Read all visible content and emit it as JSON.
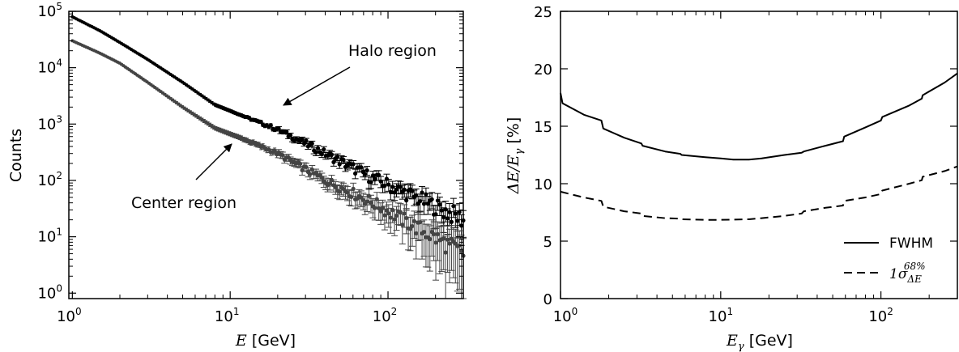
{
  "chart_data": [
    {
      "type": "scatter",
      "ylabel": "Counts",
      "xlabel": {
        "italic": "E",
        "rest": " [GeV]"
      },
      "x_scale": "log",
      "y_scale": "log",
      "xlim": [
        0.95,
        300
      ],
      "ylim": [
        0.8,
        100000
      ],
      "x_ticks": [
        {
          "value": 1,
          "base": "10",
          "exp": "0"
        },
        {
          "value": 10,
          "base": "10",
          "exp": "1"
        },
        {
          "value": 100,
          "base": "10",
          "exp": "2"
        }
      ],
      "y_ticks": [
        {
          "value": 1,
          "base": "10",
          "exp": "0"
        },
        {
          "value": 10,
          "base": "10",
          "exp": "1"
        },
        {
          "value": 100,
          "base": "10",
          "exp": "2"
        },
        {
          "value": 1000,
          "base": "10",
          "exp": "3"
        },
        {
          "value": 10000,
          "base": "10",
          "exp": "4"
        },
        {
          "value": 100000,
          "base": "10",
          "exp": "5"
        }
      ],
      "series": [
        {
          "name": "Halo region",
          "color": "#000000",
          "x": [
            1,
            1.5,
            2,
            3,
            5,
            8,
            12,
            20,
            40,
            80,
            150,
            300
          ],
          "y": [
            80000,
            45000,
            28000,
            14000,
            5500,
            2200,
            1400,
            800,
            300,
            110,
            50,
            20
          ]
        },
        {
          "name": "Center region",
          "color": "#444444",
          "x": [
            1,
            1.5,
            2,
            3,
            5,
            8,
            12,
            20,
            40,
            80,
            150,
            300
          ],
          "y": [
            30000,
            18000,
            12000,
            5500,
            2000,
            850,
            550,
            300,
            100,
            40,
            15,
            5
          ]
        }
      ],
      "annotations": [
        {
          "text": "Halo region",
          "target": [
            20,
            1700
          ]
        },
        {
          "text": "Center region",
          "target": [
            10,
            560
          ]
        }
      ]
    },
    {
      "type": "line",
      "ylabel": {
        "math": "ΔE/E",
        "sub": "γ",
        "rest": " [%]"
      },
      "xlabel": {
        "italic": "E",
        "sub": "γ",
        "rest": " [GeV]"
      },
      "x_scale": "log",
      "xlim": [
        1,
        300
      ],
      "ylim": [
        0,
        25
      ],
      "x_ticks": [
        {
          "value": 1,
          "base": "10",
          "exp": "0"
        },
        {
          "value": 10,
          "base": "10",
          "exp": "1"
        },
        {
          "value": 100,
          "base": "10",
          "exp": "2"
        }
      ],
      "y_ticks": [
        "0",
        "5",
        "10",
        "15",
        "20",
        "25"
      ],
      "series": [
        {
          "name": "FWHM",
          "style": "solid",
          "x": [
            1,
            1.03,
            1.4,
            1.8,
            1.85,
            2.5,
            3.2,
            3.25,
            4.5,
            5.6,
            5.7,
            8,
            10,
            12,
            15,
            18,
            25,
            32,
            33,
            45,
            58,
            59,
            80,
            100,
            102,
            150,
            180,
            182,
            250,
            300
          ],
          "y": [
            17.9,
            17.0,
            16.0,
            15.5,
            14.8,
            14.0,
            13.5,
            13.3,
            12.8,
            12.6,
            12.5,
            12.3,
            12.2,
            12.1,
            12.1,
            12.2,
            12.5,
            12.7,
            12.8,
            13.3,
            13.7,
            14.1,
            14.9,
            15.5,
            15.8,
            16.8,
            17.4,
            17.7,
            18.8,
            19.6
          ]
        },
        {
          "name": {
            "pre": "1σ",
            "sub": "ΔE",
            "sup": "68%"
          },
          "style": "dashed",
          "x": [
            1,
            1.4,
            1.8,
            1.85,
            2.5,
            3.2,
            3.25,
            4.5,
            5.6,
            5.7,
            8,
            10,
            15,
            18,
            25,
            32,
            33,
            45,
            58,
            59,
            80,
            100,
            102,
            150,
            180,
            182,
            250,
            300
          ],
          "y": [
            9.3,
            8.8,
            8.5,
            8.0,
            7.6,
            7.4,
            7.2,
            7.0,
            6.95,
            6.9,
            6.85,
            6.85,
            6.9,
            7.0,
            7.2,
            7.4,
            7.6,
            7.9,
            8.1,
            8.5,
            8.8,
            9.1,
            9.4,
            10.0,
            10.3,
            10.6,
            11.1,
            11.5
          ]
        }
      ],
      "legend_position": "lower-right"
    }
  ]
}
